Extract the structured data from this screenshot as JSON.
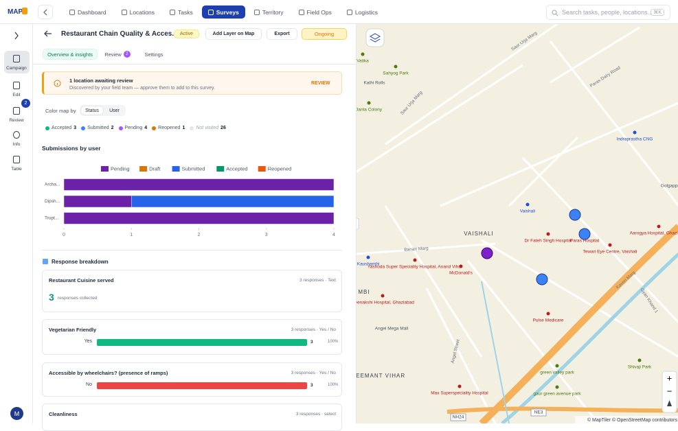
{
  "nav": {
    "logo": "MAP",
    "items": [
      "Dashboard",
      "Locations",
      "Tasks",
      "Surveys",
      "Territory",
      "Field Ops",
      "Logistics"
    ],
    "search_placeholder": "Search tasks, people, locations...",
    "search_shortcut": "⌘K"
  },
  "sidebar": {
    "items": [
      "Campaign",
      "Edit",
      "Review",
      "Info",
      "Table"
    ],
    "review_badge": 2,
    "avatar": "M"
  },
  "header": {
    "title": "Restaurant Chain Quality & Acces...",
    "status": "Active",
    "buttons": [
      "Add Layer on Map",
      "Export"
    ],
    "phase": "Ongoing"
  },
  "tabs": {
    "items": [
      "Overview & insights",
      "Review",
      "Settings"
    ],
    "review_badge": 2
  },
  "alert": {
    "title": "1 location awaiting review",
    "text": "Discovered by your field team — approve them to add to this survey.",
    "action": "REVIEW"
  },
  "color_map": {
    "label": "Color map by",
    "options": [
      "Status",
      "User"
    ]
  },
  "status_legend": [
    {
      "name": "Accepted",
      "count": 3,
      "color": "#10b981"
    },
    {
      "name": "Submitted",
      "count": 2,
      "color": "#3b82f6"
    },
    {
      "name": "Pending",
      "count": 4,
      "color": "#a855f7"
    },
    {
      "name": "Reopened",
      "count": 1,
      "color": "#d97706"
    },
    {
      "name": "Not visited",
      "count": 26,
      "color": "#e5e7eb"
    }
  ],
  "chart_data": {
    "type": "bar",
    "orientation": "horizontal",
    "stacked": true,
    "title": "Submissions by user",
    "categories": [
      "Archa...",
      "Dipsh...",
      "Trupt..."
    ],
    "series": [
      {
        "name": "Pending",
        "color": "#6b21a8",
        "values": [
          4,
          1,
          4
        ]
      },
      {
        "name": "Draft",
        "color": "#d97706",
        "values": [
          0,
          0,
          0
        ]
      },
      {
        "name": "Submitted",
        "color": "#2563eb",
        "values": [
          0,
          3,
          0
        ]
      },
      {
        "name": "Accepted",
        "color": "#059669",
        "values": [
          0,
          0,
          0
        ]
      },
      {
        "name": "Reopened",
        "color": "#ea580c",
        "values": [
          0,
          0,
          0
        ]
      }
    ],
    "xlim": [
      0,
      4
    ],
    "xticks": [
      0,
      1,
      2,
      3,
      4
    ]
  },
  "responses": {
    "title": "Response breakdown",
    "items": [
      {
        "question": "Restaurant Cuisine served",
        "meta": "3 responses · Text",
        "count": 3,
        "count_label": "responses collected"
      },
      {
        "question": "Vegetarian Friendly",
        "meta": "3 responses · Yes / No",
        "rows": [
          {
            "label": "Yes",
            "count": 3,
            "percent": 100,
            "percent_label": "100%",
            "color": "#10b981"
          }
        ]
      },
      {
        "question": "Accessible by wheelchairs? (presence of ramps)",
        "meta": "3 responses · Yes / No",
        "rows": [
          {
            "label": "No",
            "count": 3,
            "percent": 100,
            "percent_label": "100%",
            "color": "#ef4444"
          }
        ]
      },
      {
        "question": "Cleanliness",
        "meta": "3 responses · select"
      }
    ]
  },
  "map": {
    "hospitals": [
      "Dr Fateh Singh Hospital",
      "Paras Hospital",
      "Tewari Eye Centre, Vaishali",
      "Aarogya Hospital, Ghaziabad",
      "Yashoda Super Speciality Hospital, Anand Vihar",
      "Meenakshi Hospital, Ghaziabad",
      "Pulse Medicare",
      "Max Superspeciality Hospital",
      "McDonald's"
    ],
    "parks": [
      "Sahyog Park",
      "Vatika",
      "Janta Colony",
      "green valley park",
      "gaur green avenue park",
      "Shivaji Park"
    ],
    "transit": [
      "Indraprastha CNG",
      "Vaishali",
      "Kaushambi"
    ],
    "places": [
      "Angel Mega Mall",
      "Kathi Rolls",
      "Golgappe"
    ],
    "areas": [
      "VAISHALI",
      "SEEMANT VIHAR",
      "MBI"
    ],
    "roads": [
      "Saur Urja Marg",
      "Saur Urja Marg",
      "Paras Dairy Road",
      "Banan Marg",
      "Kaveri Marg",
      "Gyan Khand 1",
      "Angel Street"
    ],
    "highways": [
      "NH24",
      "NE3"
    ],
    "zoom": [
      "+",
      "−"
    ],
    "attribution": "© MapTiler © OpenStreetMap contributors"
  }
}
